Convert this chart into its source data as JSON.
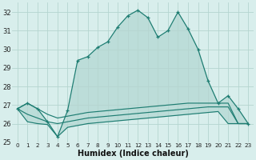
{
  "xlabel": "Humidex (Indice chaleur)",
  "x": [
    0,
    1,
    2,
    3,
    4,
    5,
    6,
    7,
    8,
    9,
    10,
    11,
    12,
    13,
    14,
    15,
    16,
    17,
    18,
    19,
    20,
    21,
    22,
    23
  ],
  "humidex": [
    26.8,
    27.1,
    26.8,
    26.1,
    25.3,
    26.7,
    29.4,
    29.6,
    30.1,
    30.4,
    31.2,
    31.8,
    32.1,
    31.7,
    30.65,
    31.0,
    32.0,
    31.1,
    30.0,
    28.3,
    27.1,
    27.5,
    26.8,
    26.0
  ],
  "line1": [
    26.8,
    26.1,
    26.0,
    25.95,
    25.3,
    25.8,
    25.9,
    26.0,
    26.05,
    26.1,
    26.15,
    26.2,
    26.25,
    26.3,
    26.35,
    26.4,
    26.45,
    26.5,
    26.55,
    26.6,
    26.65,
    26.0,
    26.0,
    26.0
  ],
  "line2": [
    26.8,
    26.5,
    26.3,
    26.1,
    26.0,
    26.1,
    26.2,
    26.3,
    26.35,
    26.4,
    26.45,
    26.5,
    26.55,
    26.6,
    26.65,
    26.7,
    26.75,
    26.8,
    26.85,
    26.9,
    26.9,
    26.9,
    26.0,
    26.0
  ],
  "line3": [
    26.8,
    27.1,
    26.8,
    26.5,
    26.3,
    26.4,
    26.5,
    26.6,
    26.65,
    26.7,
    26.75,
    26.8,
    26.85,
    26.9,
    26.95,
    27.0,
    27.05,
    27.1,
    27.1,
    27.1,
    27.1,
    27.1,
    26.0,
    26.0
  ],
  "line_color": "#1e7d72",
  "bg_color": "#d8eeec",
  "grid_color": "#b5d5d0",
  "ylim": [
    25.0,
    32.5
  ],
  "yticks": [
    25,
    26,
    27,
    28,
    29,
    30,
    31,
    32
  ],
  "fill_alpha": 0.15
}
